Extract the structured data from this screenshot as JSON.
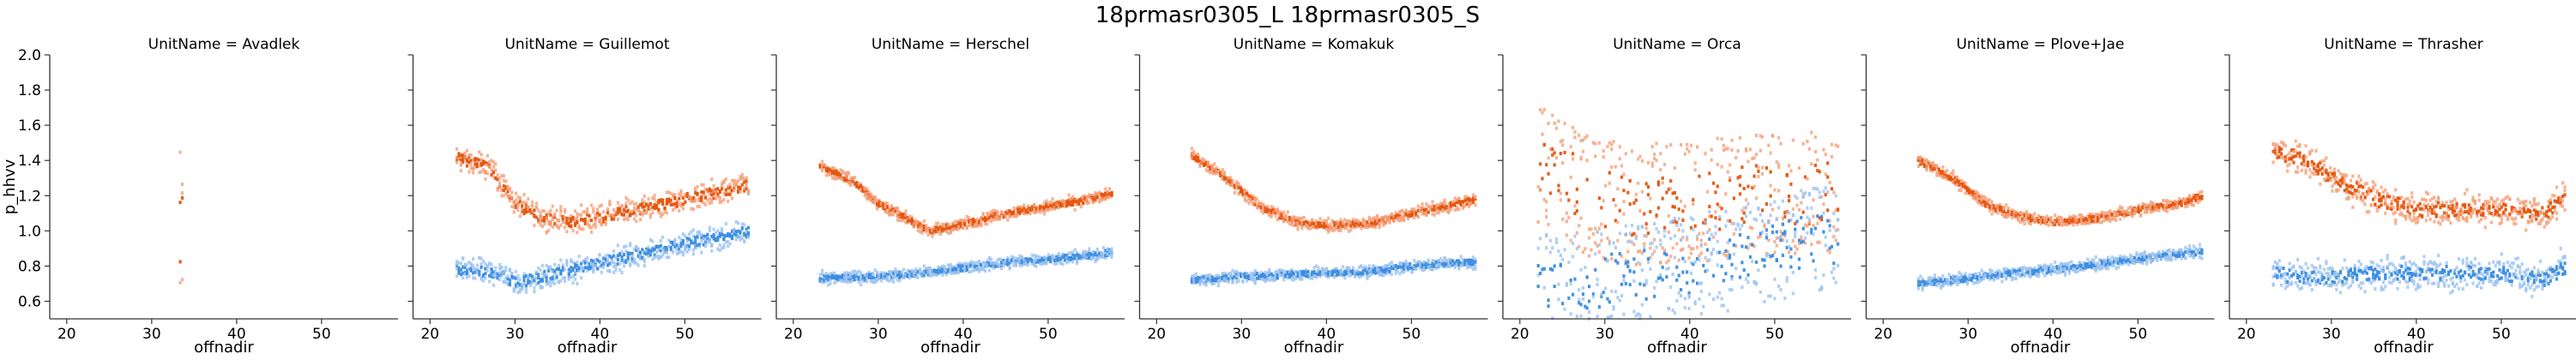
{
  "chart_data": {
    "type": "heatmap",
    "title": "18prmasr0305_L 18prmasr0305_S",
    "xlabel": "offnadir",
    "ylabel": "p_hhvv",
    "xlim": [
      18,
      59
    ],
    "ylim": [
      0.5,
      2.0
    ],
    "xticks": [
      "20",
      "30",
      "40",
      "50"
    ],
    "yticks": [
      "0.6",
      "0.8",
      "1.0",
      "1.2",
      "1.4",
      "1.6",
      "1.8",
      "2.0"
    ],
    "grid": false,
    "colors": {
      "L": "#e6550d",
      "S": "#3b8de0",
      "L_light": "#f5a07a",
      "S_light": "#9cc3f0"
    },
    "panels": [
      {
        "title": "UnitName = Avadlek",
        "series": [
          {
            "band": "L",
            "x_range": [
              33.2,
              33.6
            ],
            "trend": [
              [
                33.4,
                1.0
              ]
            ],
            "spread": 0.45,
            "noise": "high"
          }
        ]
      },
      {
        "title": "UnitName = Guillemot",
        "series": [
          {
            "band": "L",
            "x_range": [
              23,
              57.5
            ],
            "trend": [
              [
                23,
                1.42
              ],
              [
                27,
                1.35
              ],
              [
                30,
                1.15
              ],
              [
                33,
                1.08
              ],
              [
                36,
                1.05
              ],
              [
                40,
                1.08
              ],
              [
                45,
                1.13
              ],
              [
                50,
                1.18
              ],
              [
                55,
                1.23
              ],
              [
                57.5,
                1.26
              ]
            ],
            "spread": 0.06,
            "noise": "medium"
          },
          {
            "band": "S",
            "x_range": [
              23,
              57.5
            ],
            "trend": [
              [
                23,
                0.78
              ],
              [
                28,
                0.76
              ],
              [
                30,
                0.7
              ],
              [
                35,
                0.76
              ],
              [
                40,
                0.82
              ],
              [
                45,
                0.87
              ],
              [
                50,
                0.93
              ],
              [
                55,
                0.97
              ],
              [
                57.5,
                1.0
              ]
            ],
            "spread": 0.06,
            "noise": "medium"
          }
        ]
      },
      {
        "title": "UnitName = Herschel",
        "series": [
          {
            "band": "L",
            "x_range": [
              23,
              57.5
            ],
            "trend": [
              [
                23,
                1.37
              ],
              [
                27,
                1.28
              ],
              [
                30,
                1.15
              ],
              [
                34,
                1.05
              ],
              [
                36,
                1.0
              ],
              [
                40,
                1.04
              ],
              [
                45,
                1.1
              ],
              [
                50,
                1.14
              ],
              [
                55,
                1.18
              ],
              [
                57.5,
                1.22
              ]
            ],
            "spread": 0.03,
            "noise": "low"
          },
          {
            "band": "S",
            "x_range": [
              23,
              57.5
            ],
            "trend": [
              [
                23,
                0.73
              ],
              [
                30,
                0.74
              ],
              [
                35,
                0.76
              ],
              [
                40,
                0.79
              ],
              [
                45,
                0.82
              ],
              [
                50,
                0.84
              ],
              [
                55,
                0.86
              ],
              [
                57.5,
                0.88
              ]
            ],
            "spread": 0.03,
            "noise": "low"
          }
        ]
      },
      {
        "title": "UnitName = Komakuk",
        "series": [
          {
            "band": "L",
            "x_range": [
              24,
              57.5
            ],
            "trend": [
              [
                24,
                1.43
              ],
              [
                28,
                1.3
              ],
              [
                32,
                1.14
              ],
              [
                36,
                1.05
              ],
              [
                40,
                1.03
              ],
              [
                45,
                1.04
              ],
              [
                50,
                1.1
              ],
              [
                55,
                1.15
              ],
              [
                57.5,
                1.18
              ]
            ],
            "spread": 0.03,
            "noise": "low"
          },
          {
            "band": "S",
            "x_range": [
              24,
              57.5
            ],
            "trend": [
              [
                24,
                0.72
              ],
              [
                30,
                0.74
              ],
              [
                35,
                0.75
              ],
              [
                40,
                0.76
              ],
              [
                45,
                0.77
              ],
              [
                50,
                0.8
              ],
              [
                55,
                0.82
              ],
              [
                57.5,
                0.82
              ]
            ],
            "spread": 0.03,
            "noise": "low"
          }
        ]
      },
      {
        "title": "UnitName = Orca",
        "series": [
          {
            "band": "L",
            "x_range": [
              22,
              57.5
            ],
            "trend": [
              [
                22,
                1.4
              ],
              [
                25,
                1.3
              ],
              [
                28,
                1.2
              ],
              [
                32,
                1.15
              ],
              [
                36,
                1.15
              ],
              [
                40,
                1.15
              ],
              [
                45,
                1.2
              ],
              [
                50,
                1.2
              ],
              [
                55,
                1.22
              ],
              [
                57.5,
                1.2
              ]
            ],
            "spread": 0.35,
            "noise": "high"
          },
          {
            "band": "S",
            "x_range": [
              22,
              57.5
            ],
            "trend": [
              [
                22,
                0.7
              ],
              [
                28,
                0.68
              ],
              [
                32,
                0.75
              ],
              [
                36,
                0.75
              ],
              [
                40,
                0.8
              ],
              [
                45,
                0.85
              ],
              [
                50,
                0.9
              ],
              [
                55,
                0.95
              ],
              [
                57.5,
                0.95
              ]
            ],
            "spread": 0.3,
            "noise": "high"
          }
        ]
      },
      {
        "title": "UnitName = Plove+Jae",
        "series": [
          {
            "band": "L",
            "x_range": [
              24,
              57.5
            ],
            "trend": [
              [
                24,
                1.4
              ],
              [
                28,
                1.3
              ],
              [
                32,
                1.15
              ],
              [
                36,
                1.08
              ],
              [
                40,
                1.05
              ],
              [
                45,
                1.07
              ],
              [
                50,
                1.12
              ],
              [
                55,
                1.16
              ],
              [
                57.5,
                1.2
              ]
            ],
            "spread": 0.03,
            "noise": "low"
          },
          {
            "band": "S",
            "x_range": [
              24,
              57.5
            ],
            "trend": [
              [
                24,
                0.7
              ],
              [
                30,
                0.73
              ],
              [
                35,
                0.76
              ],
              [
                40,
                0.78
              ],
              [
                45,
                0.81
              ],
              [
                50,
                0.84
              ],
              [
                55,
                0.87
              ],
              [
                57.5,
                0.88
              ]
            ],
            "spread": 0.03,
            "noise": "low"
          }
        ]
      },
      {
        "title": "UnitName = Thrasher",
        "series": [
          {
            "band": "L",
            "x_range": [
              23,
              57.5
            ],
            "trend": [
              [
                23,
                1.45
              ],
              [
                27,
                1.4
              ],
              [
                30,
                1.3
              ],
              [
                35,
                1.18
              ],
              [
                40,
                1.12
              ],
              [
                45,
                1.12
              ],
              [
                50,
                1.12
              ],
              [
                55,
                1.1
              ],
              [
                57.5,
                1.2
              ]
            ],
            "spread": 0.08,
            "noise": "medium"
          },
          {
            "band": "S",
            "x_range": [
              23,
              57.5
            ],
            "trend": [
              [
                23,
                0.75
              ],
              [
                30,
                0.74
              ],
              [
                35,
                0.76
              ],
              [
                40,
                0.76
              ],
              [
                45,
                0.76
              ],
              [
                50,
                0.76
              ],
              [
                55,
                0.72
              ],
              [
                57.5,
                0.8
              ]
            ],
            "spread": 0.08,
            "noise": "medium"
          }
        ]
      }
    ]
  }
}
